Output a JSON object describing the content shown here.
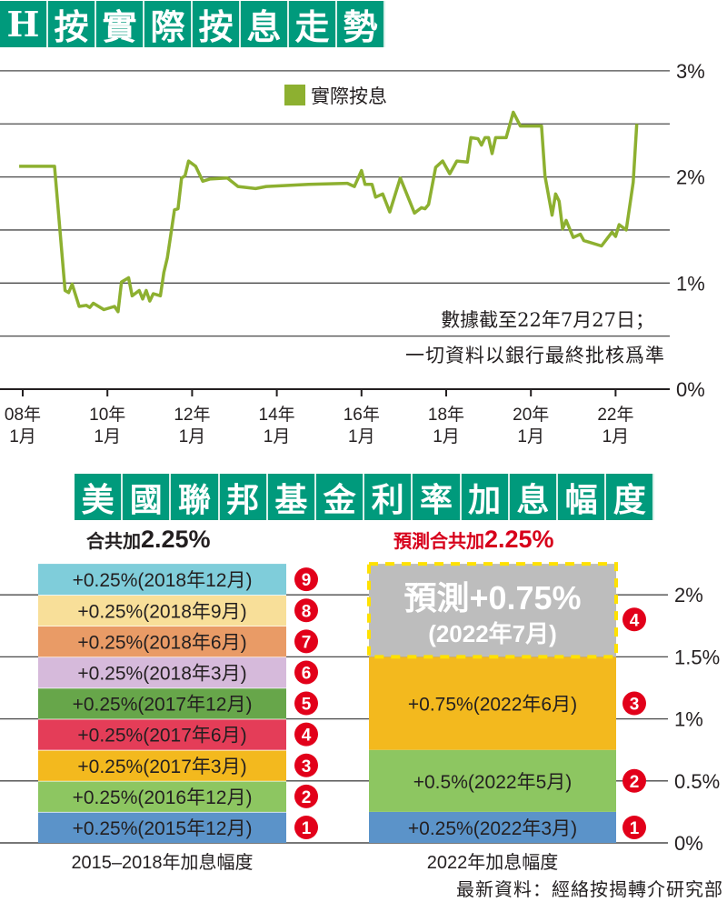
{
  "title1": [
    "H",
    "按",
    "實",
    "際",
    "按",
    "息",
    "走",
    "勢"
  ],
  "title2": [
    "美",
    "國",
    "聯",
    "邦",
    "基",
    "金",
    "利",
    "率",
    "加",
    "息",
    "幅",
    "度"
  ],
  "chart_data": [
    {
      "type": "line",
      "title": "H按實際按息走勢",
      "ylim": [
        0,
        3
      ],
      "y_ticks": [
        "0%",
        "1%",
        "2%",
        "3%"
      ],
      "grid": true,
      "grid_step": 0.5,
      "x_ticks": [
        {
          "date": "2008-01",
          "year": "08年",
          "month": "1月"
        },
        {
          "date": "2010-01",
          "year": "10年",
          "month": "1月"
        },
        {
          "date": "2012-01",
          "year": "12年",
          "month": "1月"
        },
        {
          "date": "2014-01",
          "year": "14年",
          "month": "1月"
        },
        {
          "date": "2016-01",
          "year": "16年",
          "month": "1月"
        },
        {
          "date": "2018-01",
          "year": "18年",
          "month": "1月"
        },
        {
          "date": "2020-01",
          "year": "20年",
          "month": "1月"
        },
        {
          "date": "2022-01",
          "year": "22年",
          "month": "1月"
        }
      ],
      "legend_position": "top-center",
      "series": [
        {
          "name": "實際按息",
          "color": "#8db030",
          "points": [
            [
              "2007-12",
              2.1
            ],
            [
              "2008-10",
              2.1
            ],
            [
              "2009-01",
              0.93
            ],
            [
              "2009-02",
              0.91
            ],
            [
              "2009-03",
              0.99
            ],
            [
              "2009-05",
              0.78
            ],
            [
              "2009-07",
              0.79
            ],
            [
              "2009-08",
              0.77
            ],
            [
              "2009-09",
              0.81
            ],
            [
              "2009-12",
              0.75
            ],
            [
              "2010-03",
              0.78
            ],
            [
              "2010-04",
              0.73
            ],
            [
              "2010-05",
              1.01
            ],
            [
              "2010-07",
              1.05
            ],
            [
              "2010-08",
              0.88
            ],
            [
              "2010-10",
              0.93
            ],
            [
              "2010-11",
              0.85
            ],
            [
              "2010-12",
              0.93
            ],
            [
              "2011-01",
              0.83
            ],
            [
              "2011-02",
              0.9
            ],
            [
              "2011-04",
              0.88
            ],
            [
              "2011-05",
              1.1
            ],
            [
              "2011-06",
              1.24
            ],
            [
              "2011-08",
              1.69
            ],
            [
              "2011-09",
              1.7
            ],
            [
              "2011-10",
              1.99
            ],
            [
              "2011-11",
              2.01
            ],
            [
              "2011-12",
              2.15
            ],
            [
              "2012-02",
              2.1
            ],
            [
              "2012-04",
              1.96
            ],
            [
              "2012-06",
              1.98
            ],
            [
              "2012-11",
              1.99
            ],
            [
              "2013-02",
              1.91
            ],
            [
              "2013-07",
              1.89
            ],
            [
              "2013-10",
              1.91
            ],
            [
              "2014-10",
              1.93
            ],
            [
              "2015-09",
              1.94
            ],
            [
              "2015-11",
              1.91
            ],
            [
              "2016-01",
              2.06
            ],
            [
              "2016-02",
              1.93
            ],
            [
              "2016-04",
              1.93
            ],
            [
              "2016-05",
              1.81
            ],
            [
              "2016-07",
              1.84
            ],
            [
              "2016-09",
              1.67
            ],
            [
              "2016-12",
              1.99
            ],
            [
              "2017-04",
              1.66
            ],
            [
              "2017-06",
              1.71
            ],
            [
              "2017-07",
              1.7
            ],
            [
              "2017-08",
              1.74
            ],
            [
              "2017-10",
              2.09
            ],
            [
              "2017-12",
              2.15
            ],
            [
              "2018-02",
              2.03
            ],
            [
              "2018-04",
              2.15
            ],
            [
              "2018-07",
              2.14
            ],
            [
              "2018-08",
              2.37
            ],
            [
              "2018-10",
              2.36
            ],
            [
              "2018-11",
              2.3
            ],
            [
              "2018-12",
              2.37
            ],
            [
              "2019-01",
              2.37
            ],
            [
              "2019-02",
              2.22
            ],
            [
              "2019-03",
              2.37
            ],
            [
              "2019-06",
              2.37
            ],
            [
              "2019-08",
              2.61
            ],
            [
              "2019-10",
              2.48
            ],
            [
              "2020-04",
              2.48
            ],
            [
              "2020-05",
              2.01
            ],
            [
              "2020-07",
              1.64
            ],
            [
              "2020-08",
              1.84
            ],
            [
              "2020-09",
              1.77
            ],
            [
              "2020-10",
              1.51
            ],
            [
              "2020-11",
              1.59
            ],
            [
              "2021-01",
              1.43
            ],
            [
              "2021-03",
              1.46
            ],
            [
              "2021-04",
              1.4
            ],
            [
              "2021-09",
              1.35
            ],
            [
              "2021-12",
              1.48
            ],
            [
              "2022-01",
              1.44
            ],
            [
              "2022-02",
              1.55
            ],
            [
              "2022-04",
              1.5
            ],
            [
              "2022-06",
              1.95
            ],
            [
              "2022-07",
              2.5
            ]
          ]
        }
      ],
      "annotations": [
        "數據截至22年7月27日；",
        "一切資料以銀行最終批核爲準"
      ]
    },
    {
      "type": "bar",
      "stacked": true,
      "title": "美國聯邦基金利率加息幅度",
      "ylim": [
        0,
        2.25
      ],
      "y_ticks": [
        "0%",
        "0.5%",
        "1%",
        "1.5%",
        "2%"
      ],
      "grid": true,
      "categories": [
        "2015–2018年加息幅度",
        "2022年加息幅度"
      ],
      "totals": [
        {
          "prefix": "合共加",
          "value": "2.25%",
          "color": "#231f20"
        },
        {
          "prefix": "預測合共加",
          "value": "2.25%",
          "color": "#d7001b"
        }
      ],
      "stacks": [
        [
          {
            "n": "1",
            "value": 0.25,
            "label": "+0.25%(2015年12月)",
            "color": "#5b93c9"
          },
          {
            "n": "2",
            "value": 0.25,
            "label": "+0.25%(2016年12月)",
            "color": "#8dc661"
          },
          {
            "n": "3",
            "value": 0.25,
            "label": "+0.25%(2017年3月)",
            "color": "#f3b91e"
          },
          {
            "n": "4",
            "value": 0.25,
            "label": "+0.25%(2017年6月)",
            "color": "#e43d58"
          },
          {
            "n": "5",
            "value": 0.25,
            "label": "+0.25%(2017年12月)",
            "color": "#67a64a"
          },
          {
            "n": "6",
            "value": 0.25,
            "label": "+0.25%(2018年3月)",
            "color": "#d6badb"
          },
          {
            "n": "7",
            "value": 0.25,
            "label": "+0.25%(2018年6月)",
            "color": "#e99b66"
          },
          {
            "n": "8",
            "value": 0.25,
            "label": "+0.25%(2018年9月)",
            "color": "#f8df99"
          },
          {
            "n": "9",
            "value": 0.25,
            "label": "+0.25%(2018年12月)",
            "color": "#7fcdda"
          }
        ],
        [
          {
            "n": "1",
            "value": 0.25,
            "label": "+0.25%(2022年3月)",
            "color": "#5b93c9"
          },
          {
            "n": "2",
            "value": 0.5,
            "label": "+0.5%(2022年5月)",
            "color": "#8dc661"
          },
          {
            "n": "3",
            "value": 0.75,
            "label": "+0.75%(2022年6月)",
            "color": "#f3b91e"
          },
          {
            "n": "4",
            "value": 0.75,
            "label": "預測+0.75%",
            "label2": "(2022年7月)",
            "color": "#bdbdbd",
            "forecast": true
          }
        ]
      ],
      "source": "最新資料：經絡按揭轉介研究部"
    }
  ],
  "colors": {
    "title_bg": "#009a7c",
    "badge": "#e2001a",
    "forecast_border": "#ffe100"
  }
}
